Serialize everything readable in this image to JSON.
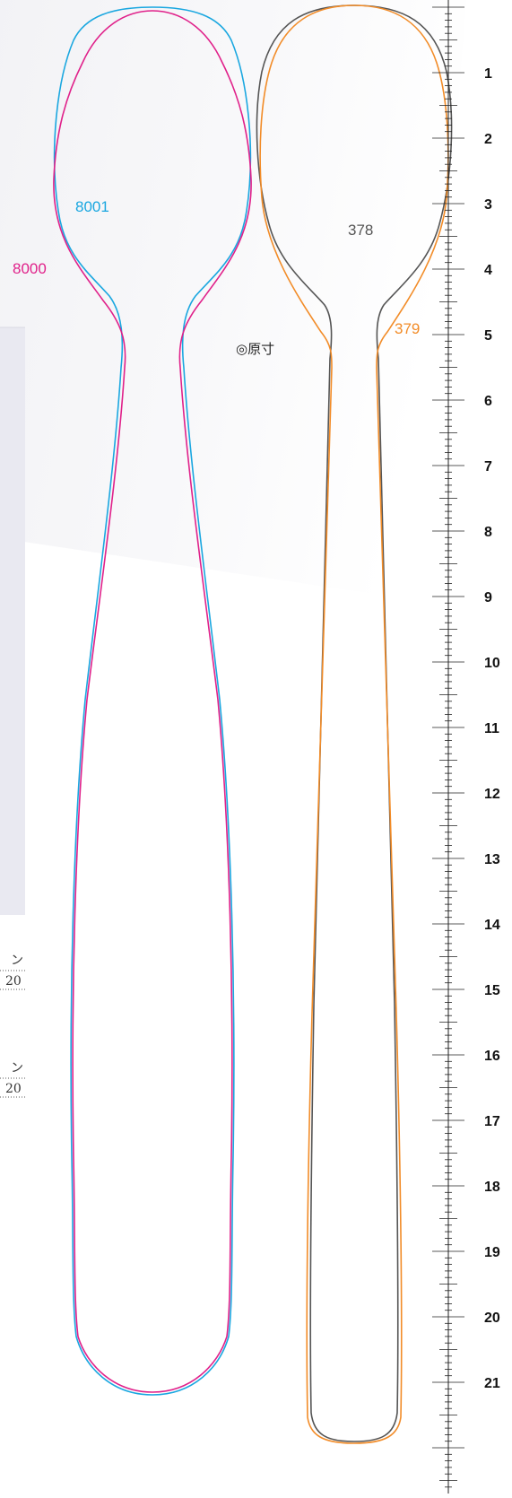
{
  "diagram": {
    "note": "◎原寸",
    "models": [
      {
        "id": "m8000",
        "label": "8000",
        "color": "#e0218a"
      },
      {
        "id": "m8001",
        "label": "8001",
        "color": "#1aa7e0"
      },
      {
        "id": "m378",
        "label": "378",
        "color": "#555555"
      },
      {
        "id": "m379",
        "label": "379",
        "color": "#f28c28"
      }
    ],
    "ruler_labels": [
      "1",
      "2",
      "3",
      "4",
      "5",
      "6",
      "7",
      "8",
      "9",
      "10",
      "11",
      "12",
      "13",
      "14",
      "15",
      "16",
      "17",
      "18",
      "19",
      "20",
      "21"
    ],
    "edge_fragments": [
      {
        "top": "ン",
        "bottom": "20"
      },
      {
        "top": "ン",
        "bottom": "20"
      }
    ]
  }
}
